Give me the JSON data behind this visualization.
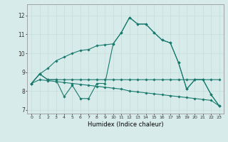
{
  "xlabel": "Humidex (Indice chaleur)",
  "ylabel": "",
  "background_color": "#d7ecea",
  "grid_color": "#c8e0dc",
  "line_color": "#1a7a6e",
  "xlim": [
    -0.5,
    23.5
  ],
  "ylim": [
    6.8,
    12.6
  ],
  "yticks": [
    7,
    8,
    9,
    10,
    11,
    12
  ],
  "xticks": [
    0,
    1,
    2,
    3,
    4,
    5,
    6,
    7,
    8,
    9,
    10,
    11,
    12,
    13,
    14,
    15,
    16,
    17,
    18,
    19,
    20,
    21,
    22,
    23
  ],
  "series": [
    [
      8.4,
      8.9,
      8.6,
      8.6,
      7.7,
      8.3,
      7.6,
      7.6,
      8.4,
      8.4,
      10.5,
      11.1,
      11.9,
      11.55,
      11.55,
      11.1,
      10.7,
      10.55,
      9.5,
      8.1,
      8.6,
      8.6,
      7.8,
      7.2
    ],
    [
      8.4,
      8.9,
      8.6,
      8.6,
      8.6,
      8.6,
      8.6,
      8.6,
      8.6,
      8.6,
      8.6,
      8.6,
      8.6,
      8.6,
      8.6,
      8.6,
      8.6,
      8.6,
      8.6,
      8.6,
      8.6,
      8.6,
      8.6,
      8.6
    ],
    [
      8.4,
      8.9,
      9.2,
      9.6,
      9.8,
      10.0,
      10.15,
      10.2,
      10.4,
      10.45,
      10.5,
      11.1,
      11.9,
      11.55,
      11.55,
      11.1,
      10.7,
      10.55,
      9.5,
      8.1,
      8.6,
      8.6,
      7.8,
      7.2
    ],
    [
      8.4,
      8.6,
      8.55,
      8.5,
      8.45,
      8.4,
      8.35,
      8.3,
      8.25,
      8.2,
      8.15,
      8.1,
      8.0,
      7.95,
      7.9,
      7.85,
      7.8,
      7.75,
      7.7,
      7.65,
      7.6,
      7.55,
      7.5,
      7.2
    ]
  ]
}
